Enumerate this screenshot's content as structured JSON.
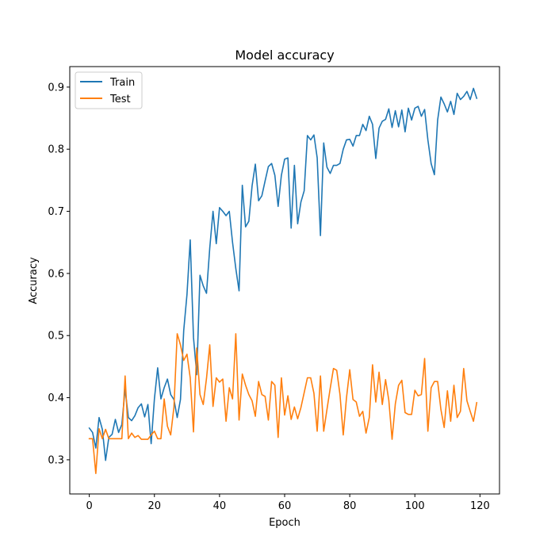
{
  "chart_data": {
    "type": "line",
    "title": "Model accuracy",
    "xlabel": "Epoch",
    "ylabel": "Accuracy",
    "xlim": [
      -6,
      126
    ],
    "ylim": [
      0.245,
      0.933
    ],
    "xticks": [
      0,
      20,
      40,
      60,
      80,
      100,
      120
    ],
    "yticks": [
      0.3,
      0.4,
      0.5,
      0.6,
      0.7,
      0.8,
      0.9
    ],
    "grid": false,
    "legend_position": "upper-left",
    "series": [
      {
        "name": "Train",
        "color": "#1f77b4",
        "values": [
          0.351,
          0.344,
          0.319,
          0.368,
          0.349,
          0.299,
          0.336,
          0.341,
          0.365,
          0.344,
          0.357,
          0.414,
          0.368,
          0.363,
          0.371,
          0.384,
          0.39,
          0.369,
          0.389,
          0.326,
          0.398,
          0.448,
          0.398,
          0.416,
          0.43,
          0.405,
          0.397,
          0.368,
          0.397,
          0.508,
          0.566,
          0.654,
          0.497,
          0.437,
          0.597,
          0.58,
          0.568,
          0.641,
          0.7,
          0.648,
          0.706,
          0.7,
          0.693,
          0.7,
          0.65,
          0.608,
          0.572,
          0.742,
          0.675,
          0.684,
          0.741,
          0.776,
          0.717,
          0.725,
          0.749,
          0.772,
          0.777,
          0.758,
          0.708,
          0.758,
          0.784,
          0.786,
          0.673,
          0.774,
          0.68,
          0.715,
          0.733,
          0.822,
          0.815,
          0.823,
          0.786,
          0.661,
          0.81,
          0.771,
          0.761,
          0.774,
          0.774,
          0.777,
          0.8,
          0.815,
          0.816,
          0.805,
          0.822,
          0.822,
          0.84,
          0.83,
          0.853,
          0.84,
          0.785,
          0.834,
          0.845,
          0.848,
          0.865,
          0.835,
          0.862,
          0.836,
          0.863,
          0.828,
          0.866,
          0.847,
          0.866,
          0.869,
          0.853,
          0.864,
          0.815,
          0.777,
          0.759,
          0.847,
          0.884,
          0.873,
          0.86,
          0.877,
          0.856,
          0.89,
          0.88,
          0.885,
          0.893,
          0.88,
          0.898,
          0.882
        ]
      },
      {
        "name": "Test",
        "color": "#ff7f0e",
        "values": [
          0.334,
          0.334,
          0.278,
          0.35,
          0.334,
          0.349,
          0.334,
          0.334,
          0.334,
          0.334,
          0.334,
          0.435,
          0.334,
          0.343,
          0.336,
          0.339,
          0.333,
          0.333,
          0.333,
          0.34,
          0.346,
          0.334,
          0.334,
          0.398,
          0.354,
          0.34,
          0.385,
          0.503,
          0.485,
          0.46,
          0.47,
          0.432,
          0.345,
          0.48,
          0.405,
          0.389,
          0.431,
          0.485,
          0.386,
          0.432,
          0.425,
          0.43,
          0.362,
          0.416,
          0.398,
          0.503,
          0.364,
          0.438,
          0.42,
          0.405,
          0.395,
          0.37,
          0.426,
          0.405,
          0.402,
          0.364,
          0.426,
          0.42,
          0.336,
          0.432,
          0.372,
          0.403,
          0.365,
          0.385,
          0.366,
          0.384,
          0.408,
          0.432,
          0.432,
          0.407,
          0.346,
          0.435,
          0.346,
          0.381,
          0.415,
          0.447,
          0.444,
          0.405,
          0.34,
          0.4,
          0.445,
          0.397,
          0.393,
          0.37,
          0.378,
          0.343,
          0.368,
          0.453,
          0.393,
          0.441,
          0.389,
          0.429,
          0.396,
          0.333,
          0.39,
          0.42,
          0.428,
          0.376,
          0.373,
          0.373,
          0.412,
          0.403,
          0.405,
          0.463,
          0.346,
          0.416,
          0.426,
          0.426,
          0.381,
          0.352,
          0.411,
          0.362,
          0.42,
          0.368,
          0.378,
          0.447,
          0.395,
          0.378,
          0.362,
          0.392
        ]
      }
    ]
  }
}
